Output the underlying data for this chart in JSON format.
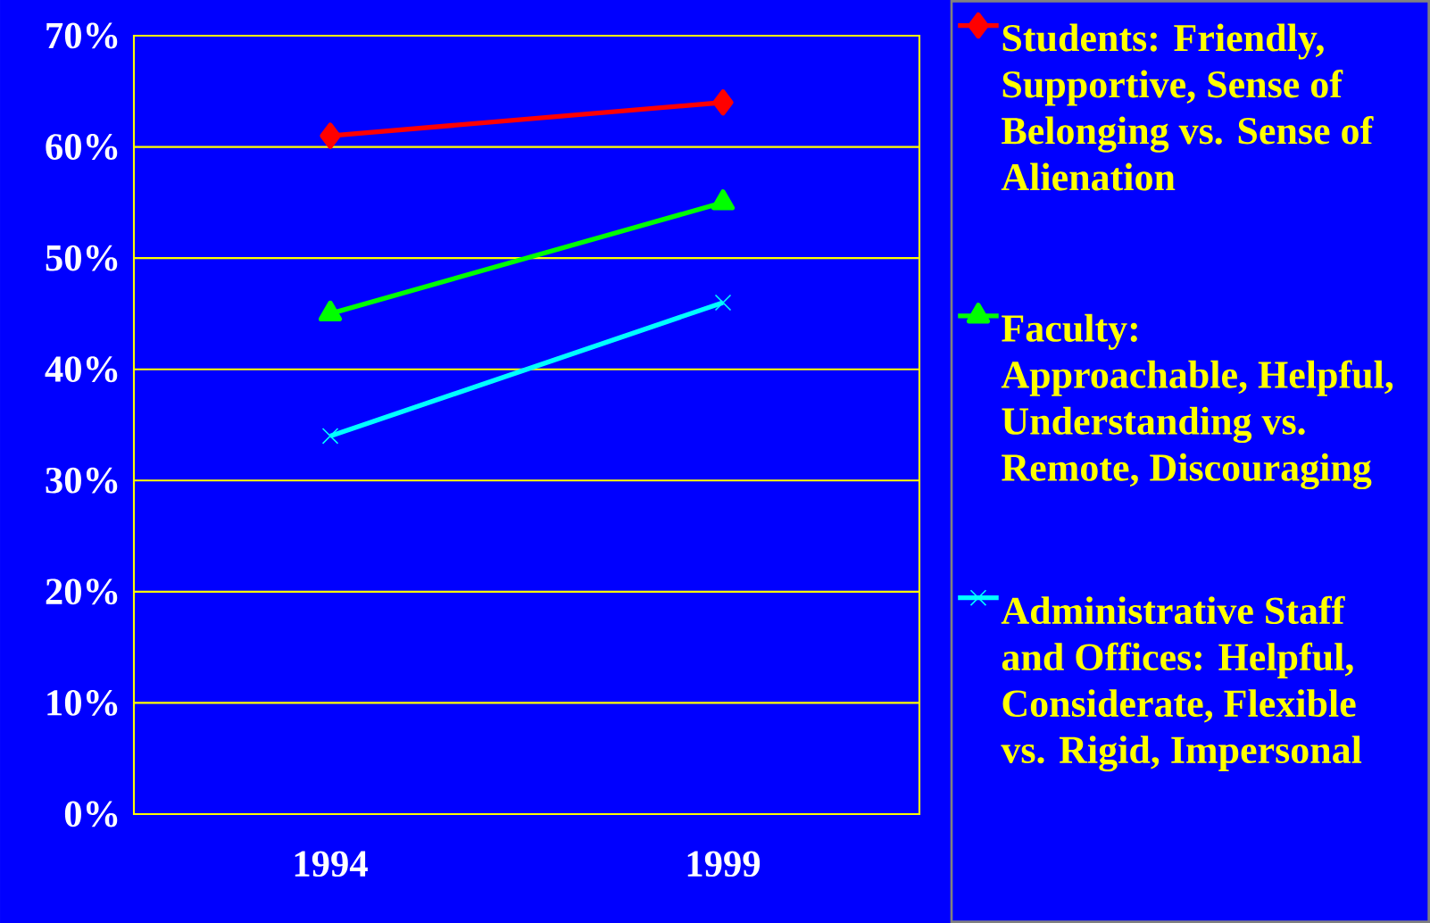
{
  "chart_data": {
    "type": "line",
    "categories": [
      "1994",
      "1999"
    ],
    "series": [
      {
        "name": "Students:  Friendly, Supportive, Sense of Belonging vs. Sense of Alienation",
        "color": "#ff0000",
        "marker": "diamond",
        "values": [
          61,
          64
        ]
      },
      {
        "name": "Faculty: Approachable, Helpful, Understanding vs. Remote, Discouraging",
        "color": "#00ff00",
        "marker": "triangle",
        "values": [
          45,
          55
        ]
      },
      {
        "name": "Administrative Staff and Offices:  Helpful, Considerate, Flexible vs. Rigid, Impersonal",
        "color": "#00ffff",
        "marker": "cross",
        "values": [
          34,
          46
        ]
      }
    ],
    "ylim": [
      0,
      70
    ],
    "yticks": [
      {
        "value": 0,
        "label": "0%"
      },
      {
        "value": 10,
        "label": "10%"
      },
      {
        "value": 20,
        "label": "20%"
      },
      {
        "value": 30,
        "label": "30%"
      },
      {
        "value": 40,
        "label": "40%"
      },
      {
        "value": 50,
        "label": "50%"
      },
      {
        "value": 60,
        "label": "60%"
      },
      {
        "value": 70,
        "label": "70%"
      }
    ],
    "grid": "y",
    "legend": "right"
  }
}
